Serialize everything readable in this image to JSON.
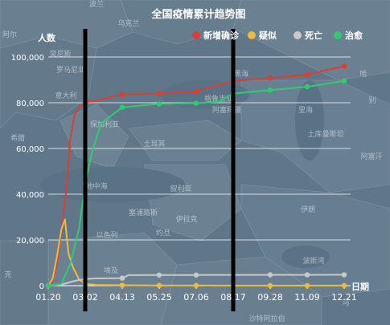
{
  "chart_data": {
    "type": "line",
    "title": "全国疫情累计趋势图",
    "ylabel": "人数",
    "xlabel": "日期",
    "ylim": [
      0,
      100000
    ],
    "yticks": [
      0,
      20000,
      40000,
      60000,
      80000,
      100000
    ],
    "ytick_labels": [
      "0",
      "20,000",
      "40,000",
      "60,000",
      "80,000",
      "100,000"
    ],
    "xlim": [
      "2020-01-20",
      "2020-12-21"
    ],
    "xticks": [
      "2020-01-20",
      "2020-03-02",
      "2020-04-13",
      "2020-05-25",
      "2020-07-06",
      "2020-08-17",
      "2020-09-28",
      "2020-11-09",
      "2020-12-21"
    ],
    "xtick_labels": [
      "01.20",
      "03.02",
      "04.13",
      "05.25",
      "07.06",
      "08.17",
      "09.28",
      "11.09",
      "12.21"
    ],
    "grid": true,
    "legend_position": "top-right",
    "series": [
      {
        "name": "新增确诊",
        "color": "#d93f35",
        "points": [
          [
            "2020-01-20",
            0
          ],
          [
            "2020-01-25",
            2000
          ],
          [
            "2020-01-30",
            9700
          ],
          [
            "2020-02-04",
            24000
          ],
          [
            "2020-02-09",
            40000
          ],
          [
            "2020-02-14",
            64000
          ],
          [
            "2020-02-19",
            75000
          ],
          [
            "2020-02-24",
            78000
          ],
          [
            "2020-03-02",
            80100
          ],
          [
            "2020-03-15",
            81000
          ],
          [
            "2020-04-13",
            83600
          ],
          [
            "2020-05-25",
            84100
          ],
          [
            "2020-07-06",
            84900
          ],
          [
            "2020-08-17",
            89500
          ],
          [
            "2020-09-28",
            90800
          ],
          [
            "2020-11-09",
            92300
          ],
          [
            "2020-12-21",
            96000
          ]
        ]
      },
      {
        "name": "疑似",
        "color": "#f0b940",
        "points": [
          [
            "2020-01-20",
            0
          ],
          [
            "2020-01-25",
            3000
          ],
          [
            "2020-01-30",
            13000
          ],
          [
            "2020-02-04",
            24700
          ],
          [
            "2020-02-08",
            29000
          ],
          [
            "2020-02-12",
            14000
          ],
          [
            "2020-02-17",
            8000
          ],
          [
            "2020-02-24",
            2800
          ],
          [
            "2020-03-02",
            800
          ],
          [
            "2020-03-15",
            300
          ],
          [
            "2020-04-13",
            200
          ],
          [
            "2020-05-25",
            100
          ],
          [
            "2020-07-06",
            100
          ],
          [
            "2020-08-17",
            50
          ],
          [
            "2020-09-28",
            50
          ],
          [
            "2020-11-09",
            50
          ],
          [
            "2020-12-21",
            50
          ]
        ]
      },
      {
        "name": "死亡",
        "color": "#c9c9c9",
        "points": [
          [
            "2020-01-20",
            0
          ],
          [
            "2020-02-04",
            500
          ],
          [
            "2020-02-19",
            2100
          ],
          [
            "2020-03-02",
            2900
          ],
          [
            "2020-03-15",
            3200
          ],
          [
            "2020-04-13",
            3300
          ],
          [
            "2020-04-20",
            4600
          ],
          [
            "2020-05-25",
            4640
          ],
          [
            "2020-07-06",
            4650
          ],
          [
            "2020-08-17",
            4700
          ],
          [
            "2020-09-28",
            4740
          ],
          [
            "2020-11-09",
            4750
          ],
          [
            "2020-12-21",
            4760
          ]
        ]
      },
      {
        "name": "治愈",
        "color": "#2ecc71",
        "points": [
          [
            "2020-01-20",
            0
          ],
          [
            "2020-02-04",
            800
          ],
          [
            "2020-02-14",
            9400
          ],
          [
            "2020-02-24",
            25000
          ],
          [
            "2020-03-02",
            44500
          ],
          [
            "2020-03-10",
            59000
          ],
          [
            "2020-03-20",
            71000
          ],
          [
            "2020-04-13",
            78000
          ],
          [
            "2020-05-25",
            79500
          ],
          [
            "2020-07-06",
            79800
          ],
          [
            "2020-08-01",
            80500
          ],
          [
            "2020-08-17",
            84000
          ],
          [
            "2020-09-28",
            85500
          ],
          [
            "2020-11-09",
            87000
          ],
          [
            "2020-12-21",
            89500
          ]
        ]
      }
    ],
    "markers": [
      "2020-03-02",
      "2020-08-17"
    ],
    "map_labels": [
      "波兰",
      "乌克兰",
      "罗马尼亚",
      "意大利",
      "保加利亚",
      "希腊",
      "土耳其",
      "格鲁吉亚",
      "阿塞拜疆",
      "叙利亚",
      "伊拉克",
      "约旦",
      "埃及",
      "伊朗",
      "以色列",
      "沙特阿拉伯",
      "土库曼斯坦",
      "塞浦路斯",
      "黑海",
      "里海",
      "地中海",
      "波斯湾",
      "哈",
      "别",
      "阿富汗",
      "阿尔",
      "突尼斯",
      "克",
      "马"
    ]
  }
}
